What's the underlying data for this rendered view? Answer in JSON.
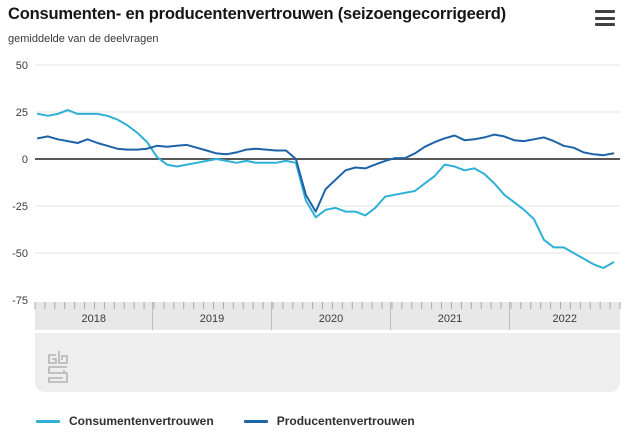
{
  "header": {
    "title": "Consumenten- en producentenvertrouwen (seizoengecorrigeerd)",
    "subtitle": "gemiddelde van de deelvragen"
  },
  "chart_data": {
    "type": "line",
    "title": "Consumenten- en producentenvertrouwen (seizoengecorrigeerd)",
    "subtitle": "gemiddelde van de deelvragen",
    "x_unit": "month",
    "x_start": "2018-01",
    "x_end": "2022-11",
    "year_labels": [
      "2018",
      "2019",
      "2020",
      "2021",
      "2022"
    ],
    "y_ticks": [
      50,
      25,
      0,
      -25,
      -50,
      -75
    ],
    "ylim": [
      -75,
      50
    ],
    "grid": true,
    "legend_position": "bottom",
    "colors": {
      "grid": "#e3e3e3",
      "zero_line": "#58585a",
      "axis_band": "#e8e8e8",
      "axis_tick": "#a8a8a8",
      "axis_divider": "#bdbdbd",
      "axis_text": "#3a3a3a",
      "footer_panel": "#eeeeee",
      "logo_gray": "#b4b4b4"
    },
    "series": [
      {
        "name": "Consumentenvertrouwen",
        "color": "#2fb0d5",
        "values": [
          24,
          23,
          24,
          26,
          24,
          24,
          24,
          23,
          21,
          18,
          14,
          9,
          1,
          -3,
          -4,
          -3,
          -2,
          -1,
          0,
          -1,
          -2,
          -1,
          -2,
          -2,
          -2,
          -1,
          -2,
          -22,
          -31,
          -27,
          -26,
          -28,
          -28,
          -30,
          -26,
          -20,
          -19,
          -18,
          -17,
          -13,
          -9,
          -3,
          -4,
          -6,
          -5,
          -8,
          -13,
          -19,
          -23,
          -27,
          -32,
          -43,
          -47,
          -47,
          -50,
          -53,
          -56,
          -58,
          -55
        ]
      },
      {
        "name": "Producentenvertrouwen",
        "color": "#1d63a8",
        "values": [
          11,
          12,
          10.5,
          9.5,
          8.5,
          10.5,
          8.5,
          7,
          5.5,
          5,
          5,
          5.5,
          7,
          6.5,
          7,
          7.5,
          6,
          4.5,
          3,
          2.5,
          3.5,
          5,
          5.5,
          5,
          4.5,
          4.5,
          0,
          -19,
          -28,
          -16,
          -11,
          -6,
          -4.5,
          -5,
          -3,
          -1,
          0.5,
          0.5,
          3,
          6.5,
          9,
          11,
          12.5,
          10,
          10.5,
          11.5,
          13,
          12,
          10,
          9.5,
          10.5,
          11.5,
          9.5,
          7,
          6,
          3.5,
          2.5,
          2,
          3
        ]
      }
    ]
  }
}
